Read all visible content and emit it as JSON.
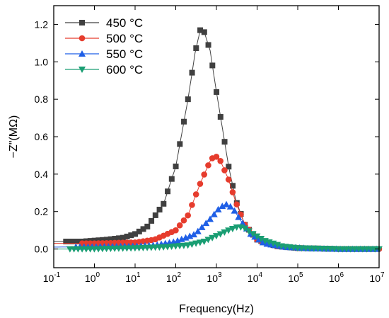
{
  "chart_data": {
    "type": "line",
    "title": "",
    "xlabel": "Frequency(Hz)",
    "ylabel": "−Z\"(MΩ)",
    "x_scale": "log",
    "xlim": [
      0.1,
      10000000
    ],
    "ylim": [
      -0.1,
      1.3
    ],
    "x_tick_labels": [
      {
        "base": "10",
        "exp": "-1"
      },
      {
        "base": "10",
        "exp": "0"
      },
      {
        "base": "10",
        "exp": "1"
      },
      {
        "base": "10",
        "exp": "2"
      },
      {
        "base": "10",
        "exp": "3"
      },
      {
        "base": "10",
        "exp": "4"
      },
      {
        "base": "10",
        "exp": "5"
      },
      {
        "base": "10",
        "exp": "6"
      },
      {
        "base": "10",
        "exp": "7"
      }
    ],
    "y_ticks": [
      "0.0",
      "0.2",
      "0.4",
      "0.6",
      "0.8",
      "1.0",
      "1.2"
    ],
    "grid": false,
    "legend_position": "top-left",
    "series": [
      {
        "name": "450 °C",
        "color": "#404040",
        "marker": "square",
        "points": [
          [
            0.1,
            0.04
          ],
          [
            0.2,
            0.04
          ],
          [
            0.5,
            0.04
          ],
          [
            1,
            0.045
          ],
          [
            2,
            0.05
          ],
          [
            5,
            0.06
          ],
          [
            10,
            0.08
          ],
          [
            20,
            0.12
          ],
          [
            50,
            0.24
          ],
          [
            100,
            0.44
          ],
          [
            200,
            0.8
          ],
          [
            300,
            1.05
          ],
          [
            400,
            1.17
          ],
          [
            500,
            1.16
          ],
          [
            700,
            1.06
          ],
          [
            1000,
            0.84
          ],
          [
            2000,
            0.44
          ],
          [
            3000,
            0.26
          ],
          [
            5000,
            0.13
          ],
          [
            10000,
            0.05
          ],
          [
            30000,
            0.015
          ],
          [
            100000,
            0.005
          ],
          [
            1000000,
            0.0
          ],
          [
            10000000,
            0.0
          ]
        ]
      },
      {
        "name": "500 °C",
        "color": "#e63c2d",
        "marker": "circle",
        "points": [
          [
            0.1,
            0.03
          ],
          [
            1,
            0.03
          ],
          [
            10,
            0.035
          ],
          [
            30,
            0.05
          ],
          [
            100,
            0.1
          ],
          [
            200,
            0.18
          ],
          [
            400,
            0.35
          ],
          [
            700,
            0.47
          ],
          [
            900,
            0.5
          ],
          [
            1200,
            0.48
          ],
          [
            2000,
            0.37
          ],
          [
            3000,
            0.25
          ],
          [
            5000,
            0.13
          ],
          [
            10000,
            0.05
          ],
          [
            30000,
            0.015
          ],
          [
            100000,
            0.005
          ],
          [
            1000000,
            0.0
          ],
          [
            10000000,
            0.0
          ]
        ]
      },
      {
        "name": "550 °C",
        "color": "#1f5fe6",
        "marker": "triangle-up",
        "points": [
          [
            0.1,
            0.01
          ],
          [
            1,
            0.012
          ],
          [
            10,
            0.015
          ],
          [
            30,
            0.02
          ],
          [
            100,
            0.04
          ],
          [
            300,
            0.08
          ],
          [
            700,
            0.16
          ],
          [
            1200,
            0.22
          ],
          [
            1700,
            0.24
          ],
          [
            2500,
            0.22
          ],
          [
            4000,
            0.15
          ],
          [
            7000,
            0.08
          ],
          [
            15000,
            0.03
          ],
          [
            50000,
            0.01
          ],
          [
            200000,
            0.003
          ],
          [
            1000000,
            0.0
          ],
          [
            10000000,
            0.0
          ]
        ]
      },
      {
        "name": "600 °C",
        "color": "#1a9e73",
        "marker": "triangle-down",
        "points": [
          [
            0.1,
            0.0
          ],
          [
            1,
            0.0
          ],
          [
            10,
            0.005
          ],
          [
            50,
            0.01
          ],
          [
            200,
            0.02
          ],
          [
            500,
            0.04
          ],
          [
            1000,
            0.07
          ],
          [
            2000,
            0.1
          ],
          [
            3500,
            0.12
          ],
          [
            5000,
            0.11
          ],
          [
            8000,
            0.08
          ],
          [
            15000,
            0.045
          ],
          [
            40000,
            0.015
          ],
          [
            100000,
            0.005
          ],
          [
            1000000,
            0.0
          ],
          [
            10000000,
            0.0
          ]
        ]
      }
    ]
  }
}
